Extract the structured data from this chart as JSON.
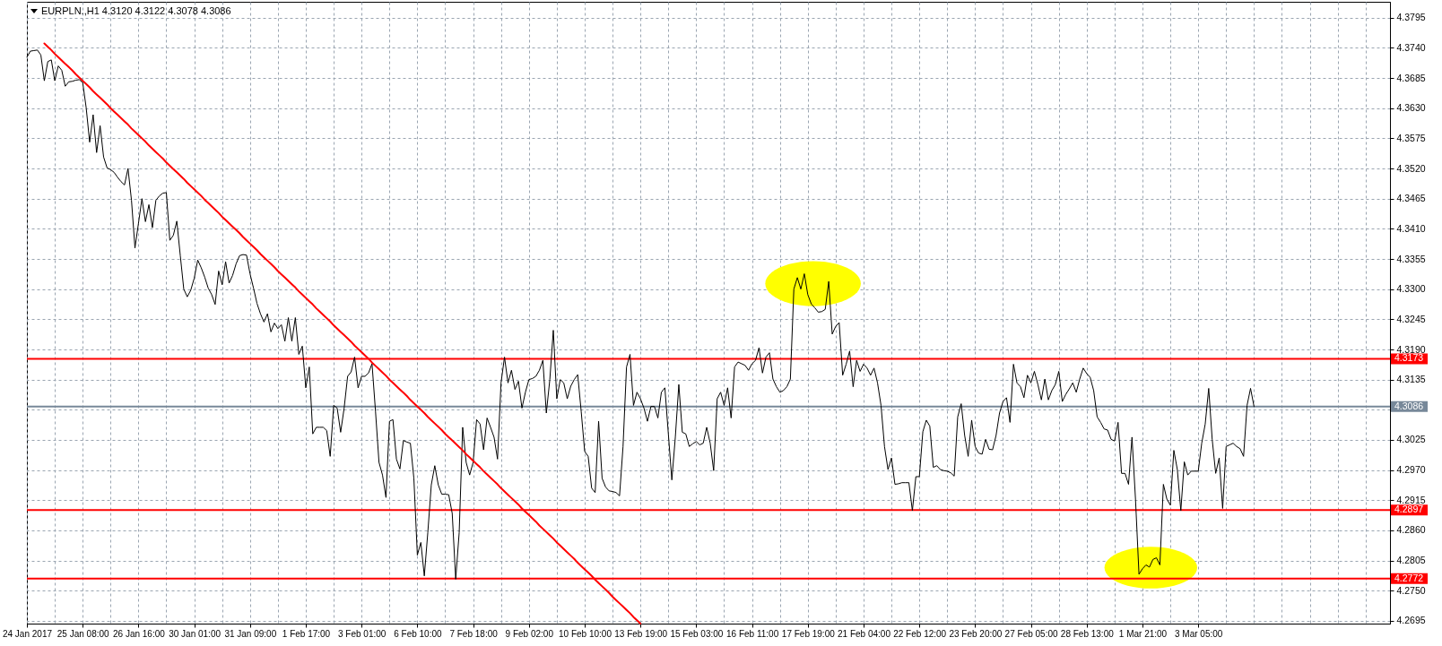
{
  "chart_data": {
    "type": "line",
    "title": "EURPLN.,H1 4.3120 4.3122 4.3078 4.3086",
    "categories": [
      "24 Jan 2017",
      null,
      null,
      null,
      null,
      null,
      null,
      null,
      null,
      null,
      null,
      null,
      null,
      null,
      null,
      null,
      "25 Jan 08:00",
      null,
      null,
      null,
      null,
      null,
      null,
      null,
      null,
      null,
      null,
      null,
      null,
      null,
      null,
      null,
      "26 Jan 16:00",
      null,
      null,
      null,
      null,
      null,
      null,
      null,
      null,
      null,
      null,
      null,
      null,
      null,
      null,
      null,
      "30 Jan 01:00",
      null,
      null,
      null,
      null,
      null,
      null,
      null,
      null,
      null,
      null,
      null,
      null,
      null,
      null,
      null,
      "31 Jan 09:00",
      null,
      null,
      null,
      null,
      null,
      null,
      null,
      null,
      null,
      null,
      null,
      null,
      null,
      null,
      null,
      "1 Feb 17:00",
      null,
      null,
      null,
      null,
      null,
      null,
      null,
      null,
      null,
      null,
      null,
      null,
      null,
      null,
      null,
      "3 Feb 01:00",
      null,
      null,
      null,
      null,
      null,
      null,
      null,
      null,
      null,
      null,
      null,
      null,
      null,
      null,
      null,
      "6 Feb 10:00",
      null,
      null,
      null,
      null,
      null,
      null,
      null,
      null,
      null,
      null,
      null,
      null,
      null,
      null,
      null,
      "7 Feb 18:00",
      null,
      null,
      null,
      null,
      null,
      null,
      null,
      null,
      null,
      null,
      null,
      null,
      null,
      null,
      null,
      "9 Feb 02:00",
      null,
      null,
      null,
      null,
      null,
      null,
      null,
      null,
      null,
      null,
      null,
      null,
      null,
      null,
      null,
      "10 Feb 10:00",
      null,
      null,
      null,
      null,
      null,
      null,
      null,
      null,
      null,
      null,
      null,
      null,
      null,
      null,
      null,
      "13 Feb 19:00",
      null,
      null,
      null,
      null,
      null,
      null,
      null,
      null,
      null,
      null,
      null,
      null,
      null,
      null,
      null,
      "15 Feb 03:00",
      null,
      null,
      null,
      null,
      null,
      null,
      null,
      null,
      null,
      null,
      null,
      null,
      null,
      null,
      null,
      "16 Feb 11:00",
      null,
      null,
      null,
      null,
      null,
      null,
      null,
      null,
      null,
      null,
      null,
      null,
      null,
      null,
      null,
      "17 Feb 19:00",
      null,
      null,
      null,
      null,
      null,
      null,
      null,
      null,
      null,
      null,
      null,
      null,
      null,
      null,
      null,
      "21 Feb 04:00",
      null,
      null,
      null,
      null,
      null,
      null,
      null,
      null,
      null,
      null,
      null,
      null,
      null,
      null,
      null,
      "22 Feb 12:00",
      null,
      null,
      null,
      null,
      null,
      null,
      null,
      null,
      null,
      null,
      null,
      null,
      null,
      null,
      null,
      "23 Feb 20:00",
      null,
      null,
      null,
      null,
      null,
      null,
      null,
      null,
      null,
      null,
      null,
      null,
      null,
      null,
      null,
      "27 Feb 05:00",
      null,
      null,
      null,
      null,
      null,
      null,
      null,
      null,
      null,
      null,
      null,
      null,
      null,
      null,
      null,
      "28 Feb 13:00",
      null,
      null,
      null,
      null,
      null,
      null,
      null,
      null,
      null,
      null,
      null,
      null,
      null,
      null,
      null,
      "1 Mar 21:00",
      null,
      null,
      null,
      null,
      null,
      null,
      null,
      null,
      null,
      null,
      null,
      null,
      null,
      null,
      null,
      "3 Mar 05:00",
      null,
      null,
      null,
      null,
      null,
      null,
      null,
      null,
      null,
      null,
      null,
      null,
      null,
      null,
      null,
      null,
      null,
      null,
      null,
      null,
      null,
      null,
      null,
      null,
      null,
      null,
      null,
      null,
      null,
      null,
      null,
      null,
      null,
      null,
      null,
      null,
      null,
      null,
      null,
      null,
      null,
      null,
      null,
      null,
      null,
      null,
      null,
      null,
      null,
      null,
      null,
      null,
      null,
      null,
      null
    ],
    "series": [
      {
        "color": "#000000",
        "values": [
          4.3723,
          4.3734,
          4.3735,
          4.3736,
          4.3727,
          4.368,
          4.3715,
          4.3718,
          4.368,
          4.3707,
          4.3699,
          4.367,
          4.3678,
          4.3679,
          4.3681,
          4.3682,
          4.3677,
          4.3631,
          4.3568,
          4.3618,
          4.3549,
          4.3598,
          4.3541,
          4.3521,
          4.3518,
          4.3513,
          4.3504,
          4.3496,
          4.349,
          4.352,
          4.3462,
          4.3375,
          4.342,
          4.3465,
          4.3423,
          4.3454,
          4.3412,
          4.3462,
          4.347,
          4.3475,
          4.3476,
          4.3389,
          4.3398,
          4.3424,
          4.3361,
          4.33,
          4.3286,
          4.3298,
          4.332,
          4.3353,
          4.3339,
          4.3322,
          4.3302,
          4.329,
          4.3272,
          4.3333,
          4.3308,
          4.335,
          4.3311,
          4.3325,
          4.3346,
          4.3361,
          4.3363,
          4.3362,
          4.3328,
          4.3302,
          4.3274,
          4.3255,
          4.324,
          4.3255,
          4.3222,
          4.3238,
          4.3228,
          4.3235,
          4.3205,
          4.3248,
          4.3205,
          4.3248,
          4.3181,
          4.3196,
          4.312,
          4.3158,
          4.3036,
          4.3048,
          4.3048,
          4.3048,
          4.3042,
          4.2995,
          4.3088,
          4.3083,
          4.3039,
          4.3083,
          4.3141,
          4.3149,
          4.3176,
          4.312,
          4.3141,
          4.3141,
          4.3147,
          4.3164,
          4.3077,
          4.2984,
          4.2961,
          4.292,
          4.3059,
          4.3062,
          4.299,
          4.2972,
          4.3024,
          4.3021,
          4.3019,
          4.2955,
          4.2815,
          4.2838,
          4.2777,
          4.2856,
          4.2943,
          4.2978,
          4.2943,
          4.2926,
          4.2926,
          4.2925,
          4.2891,
          4.2771,
          4.2856,
          4.3048,
          4.2984,
          4.2961,
          4.2984,
          4.3062,
          4.3054,
          4.3007,
          4.3065,
          4.3048,
          4.303,
          4.299,
          4.3129,
          4.3176,
          4.3129,
          4.3152,
          4.3117,
          4.3132,
          4.3083,
          4.3112,
          4.3135,
          4.3137,
          4.3141,
          4.3152,
          4.317,
          4.3074,
          4.3135,
          4.3225,
          4.31,
          4.3135,
          4.3129,
          4.31,
          4.3123,
          4.3135,
          4.3144,
          4.3077,
          4.3004,
          4.2995,
          4.2937,
          4.2929,
          4.3059,
          4.2955,
          4.2939,
          4.2932,
          4.2931,
          4.2929,
          4.2923,
          4.3013,
          4.3158,
          4.3181,
          4.3088,
          4.3112,
          4.31,
          4.3083,
          4.3059,
          4.3086,
          4.3086,
          4.3065,
          4.3112,
          4.312,
          4.3036,
          4.2952,
          4.303,
          4.3126,
          4.3039,
          4.3036,
          4.3013,
          4.3018,
          4.3022,
          4.3016,
          4.3019,
          4.3048,
          4.3019,
          4.2969,
          4.31,
          4.3112,
          4.3088,
          4.312,
          4.3065,
          4.3158,
          4.3167,
          4.3164,
          4.3161,
          4.3152,
          4.3164,
          4.317,
          4.3193,
          4.3147,
          4.3176,
          4.3184,
          4.3136,
          4.3122,
          4.3112,
          4.3115,
          4.3122,
          4.3136,
          4.33,
          4.3321,
          4.33,
          4.3328,
          4.329,
          4.3273,
          4.3266,
          4.3258,
          4.3259,
          4.3263,
          4.3314,
          4.3218,
          4.3232,
          4.3239,
          4.3143,
          4.3163,
          4.3187,
          4.3122,
          4.317,
          4.315,
          4.3163,
          4.3156,
          4.3143,
          4.3156,
          4.3129,
          4.3088,
          4.3013,
          4.2971,
          4.2992,
          4.2944,
          4.2945,
          4.2947,
          4.2947,
          4.2947,
          4.2896,
          4.2958,
          4.2958,
          4.304,
          4.3061,
          4.305,
          4.2975,
          4.2978,
          4.2971,
          4.2969,
          4.2968,
          4.2965,
          4.2959,
          4.3067,
          4.3091,
          4.3033,
          4.2995,
          4.3061,
          4.3013,
          4.3001,
          4.2999,
          4.3026,
          4.3008,
          4.3007,
          4.3033,
          4.3074,
          4.3095,
          4.3102,
          4.3057,
          4.3163,
          4.3129,
          4.3122,
          4.3102,
          4.3143,
          4.3129,
          4.315,
          4.3126,
          4.3098,
          4.3136,
          4.3098,
          4.3115,
          4.3126,
          4.315,
          4.3095,
          4.3108,
          4.3118,
          4.3129,
          4.3112,
          4.3136,
          4.3156,
          4.3146,
          4.3139,
          4.3115,
          4.3067,
          4.3057,
          4.3045,
          4.3043,
          4.3026,
          4.3023,
          4.3057,
          4.2964,
          4.2964,
          4.2944,
          4.303,
          4.2917,
          4.278,
          4.279,
          4.2797,
          4.2793,
          4.2807,
          4.281,
          4.2797,
          4.2944,
          4.2917,
          4.2906,
          4.3006,
          4.2971,
          4.2896,
          4.2985,
          4.2961,
          4.2968,
          4.2968,
          4.2968,
          4.3019,
          4.3054,
          4.3119,
          4.3026,
          4.2964,
          4.2992,
          4.29,
          4.3013,
          4.3016,
          4.3019,
          4.3013,
          4.3009,
          4.2995,
          4.3088,
          4.3119,
          4.3086,
          null,
          null,
          null,
          null,
          null,
          null,
          null,
          null,
          null,
          null,
          null,
          null,
          null,
          null,
          null,
          null,
          null,
          null,
          null,
          null,
          null,
          null,
          null,
          null,
          null,
          null,
          null,
          null,
          null,
          null,
          null,
          null,
          null,
          null,
          null,
          null,
          null,
          null,
          null
        ]
      },
      {
        "type": "line",
        "color": "#ff0000",
        "values": [
          null,
          null,
          null,
          null,
          null,
          4.3748,
          4.3742,
          4.3736,
          4.3729,
          4.3723,
          4.3717,
          4.3711,
          4.3705,
          4.3699,
          4.3692,
          4.3686,
          4.368,
          4.3674,
          4.3668,
          4.3661,
          4.3655,
          4.3649,
          4.3643,
          4.3637,
          4.363,
          4.3624,
          4.3618,
          4.3612,
          4.3606,
          4.36,
          4.3593,
          4.3587,
          4.3581,
          4.3575,
          4.3569,
          4.3562,
          4.3556,
          4.355,
          4.3544,
          4.3538,
          4.3531,
          4.3525,
          4.3519,
          4.3513,
          4.3507,
          4.3501,
          4.3494,
          4.3488,
          4.3482,
          4.3476,
          4.347,
          4.3463,
          4.3457,
          4.3451,
          4.3445,
          4.3439,
          4.3432,
          4.3426,
          4.342,
          4.3414,
          4.3408,
          4.3402,
          4.3395,
          4.3389,
          4.3383,
          4.3377,
          4.3371,
          4.3364,
          4.3358,
          4.3352,
          4.3346,
          4.334,
          4.3333,
          4.3327,
          4.3321,
          4.3315,
          4.3309,
          4.3303,
          4.3296,
          4.329,
          4.3284,
          4.3278,
          4.3272,
          4.3265,
          4.3259,
          4.3253,
          4.3247,
          4.3241,
          4.3234,
          4.3228,
          4.3222,
          4.3216,
          4.321,
          4.3204,
          4.3197,
          4.3191,
          4.3185,
          4.3179,
          4.3173,
          4.3166,
          4.316,
          4.3154,
          4.3148,
          4.3142,
          4.3135,
          4.3129,
          4.3123,
          4.3117,
          4.3111,
          4.3105,
          4.3098,
          4.3092,
          4.3086,
          4.308,
          4.3074,
          4.3067,
          4.3061,
          4.3055,
          4.3049,
          4.3043,
          4.3036,
          4.303,
          4.3024,
          4.3018,
          4.3012,
          4.3006,
          4.2999,
          4.2993,
          4.2987,
          4.2981,
          4.2975,
          4.2968,
          4.2962,
          4.2956,
          4.295,
          4.2944,
          4.2937,
          4.2931,
          4.2925,
          4.2919,
          4.2913,
          4.2907,
          4.29,
          4.2894,
          4.2888,
          4.2882,
          4.2876,
          4.2869,
          4.2863,
          4.2857,
          4.2851,
          4.2845,
          4.2838,
          4.2832,
          4.2826,
          4.282,
          4.2814,
          4.2808,
          4.2801,
          4.2795,
          4.2789,
          4.2783,
          4.2777,
          4.277,
          4.2764,
          4.2758,
          4.2752,
          4.2746,
          4.2739,
          4.2733,
          4.2727,
          4.2721,
          4.2715,
          4.2709,
          4.2702,
          4.2696,
          4.269,
          null,
          null,
          null,
          null,
          null,
          null,
          null,
          null,
          null,
          null,
          null,
          null,
          null,
          null,
          null,
          null,
          null,
          null,
          null,
          null,
          null,
          null,
          null,
          null,
          null,
          null,
          null,
          null,
          null,
          null,
          null,
          null,
          null,
          null,
          null,
          null,
          null,
          null,
          null,
          null,
          null,
          null,
          null,
          null,
          null,
          null,
          null,
          null,
          null,
          null,
          null,
          null,
          null,
          null,
          null,
          null,
          null,
          null,
          null,
          null,
          null,
          null,
          null,
          null,
          null,
          null,
          null,
          null,
          null,
          null,
          null,
          null,
          null,
          null,
          null,
          null,
          null,
          null,
          null,
          null,
          null,
          null,
          null,
          null,
          null,
          null,
          null,
          null,
          null,
          null,
          null,
          null,
          null,
          null,
          null,
          null,
          null,
          null,
          null,
          null,
          null,
          null,
          null,
          null,
          null,
          null,
          null,
          null,
          null,
          null,
          null,
          null,
          null,
          null,
          null,
          null,
          null,
          null,
          null,
          null,
          null,
          null,
          null,
          null,
          null,
          null,
          null,
          null,
          null,
          null,
          null,
          null,
          null,
          null,
          null,
          null,
          null,
          null,
          null,
          null,
          null,
          null,
          null,
          null,
          null,
          null,
          null,
          null,
          null,
          null,
          null,
          null,
          null,
          null,
          null,
          null,
          null,
          null,
          null,
          null,
          null,
          null,
          null,
          null,
          null,
          null,
          null,
          null,
          null,
          null,
          null,
          null,
          null,
          null,
          null,
          null,
          null,
          null,
          null,
          null,
          null,
          null,
          null,
          null,
          null,
          null,
          null,
          null,
          null,
          null,
          null,
          null,
          null,
          null,
          null,
          null,
          null,
          null,
          null,
          null,
          null,
          null,
          null,
          null,
          null,
          null,
          null,
          null,
          null,
          null,
          null,
          null,
          null,
          null,
          null
        ]
      }
    ],
    "ylim": [
      4.269,
      4.3824
    ],
    "yticks": [
      4.2695,
      {
        "value": 4.275,
        "label": "4.2750"
      },
      4.2805,
      {
        "value": 4.286,
        "label": "4.2860"
      },
      4.2915,
      {
        "value": 4.297,
        "label": "4.2970"
      },
      4.3025,
      {
        "value": 4.308,
        "label": null
      },
      4.3135,
      {
        "value": 4.319,
        "label": "4.3190"
      },
      4.3245,
      {
        "value": 4.33,
        "label": "4.3300"
      },
      4.3355,
      {
        "value": 4.341,
        "label": "4.3410"
      },
      4.3465,
      {
        "value": 4.352,
        "label": "4.3520"
      },
      4.3575,
      {
        "value": 4.363,
        "label": "4.3630"
      },
      4.3685,
      {
        "value": 4.374,
        "label": "4.3740"
      },
      4.3795
    ],
    "ref_lines": [
      {
        "axis": "y",
        "value": 4.3173,
        "label": "4.3173",
        "color": "#ff0000"
      },
      {
        "axis": "y",
        "value": 4.2897,
        "label": "4.2897",
        "color": "#ff0000"
      },
      {
        "axis": "y",
        "value": 4.2772,
        "label": "4.2772",
        "color": "#ff0000"
      },
      {
        "axis": "y",
        "value": 4.3086,
        "label": "4.3086",
        "color": "#778899"
      }
    ],
    "grid": true
  }
}
